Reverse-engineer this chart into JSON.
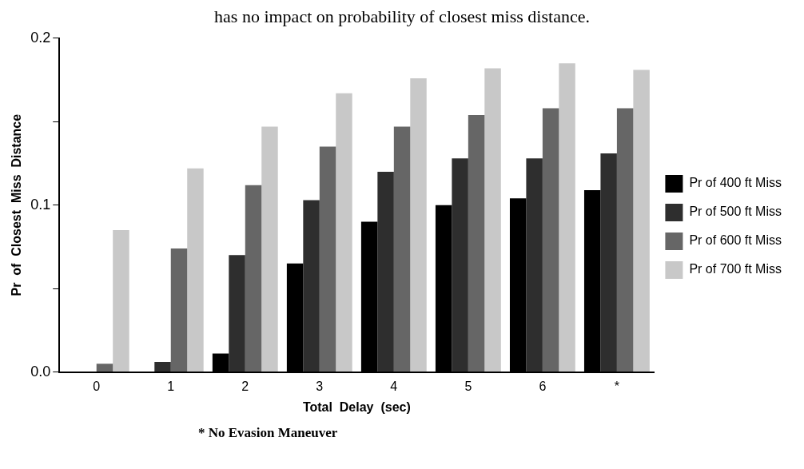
{
  "chart_data": {
    "type": "bar",
    "xlabel": "Total  Delay  (sec)",
    "ylabel": "Pr  of  Closest  Miss  Distance",
    "categories": [
      "0",
      "1",
      "2",
      "3",
      "4",
      "5",
      "6",
      "*"
    ],
    "series": [
      {
        "name": "Pr of 400 ft Miss",
        "color": "#000000",
        "values": [
          0,
          0,
          0.011,
          0.065,
          0.09,
          0.1,
          0.104,
          0.109
        ]
      },
      {
        "name": "Pr of 500 ft Miss",
        "color": "#2e2e2e",
        "values": [
          0,
          0.006,
          0.07,
          0.103,
          0.12,
          0.128,
          0.128,
          0.131
        ]
      },
      {
        "name": "Pr of 600 ft Miss",
        "color": "#666666",
        "values": [
          0.005,
          0.074,
          0.112,
          0.135,
          0.147,
          0.154,
          0.158,
          0.158
        ]
      },
      {
        "name": "Pr of 700 ft Miss",
        "color": "#c8c8c8",
        "values": [
          0.085,
          0.122,
          0.147,
          0.167,
          0.176,
          0.182,
          0.185,
          0.181
        ]
      }
    ],
    "ylim": [
      0,
      0.2
    ],
    "yticks": [
      {
        "value": 0,
        "label": "0.0"
      },
      {
        "value": 0.05,
        "label": null
      },
      {
        "value": 0.1,
        "label": "0.1"
      },
      {
        "value": 0.15,
        "label": null
      },
      {
        "value": 0.2,
        "label": "0.2"
      }
    ],
    "grid": false,
    "legend": "right",
    "annotations": [
      "has no impact on probability of closest miss distance.",
      "* No Evasion Maneuver"
    ]
  }
}
